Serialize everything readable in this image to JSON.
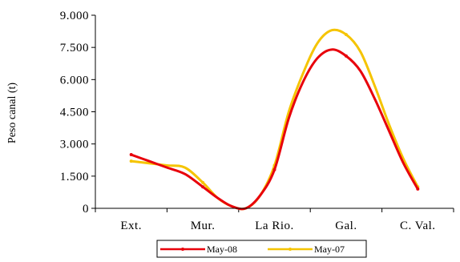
{
  "chart_data": {
    "type": "line",
    "title": "",
    "xlabel": "",
    "ylabel": "Peso canal (t)",
    "categories": [
      "Ext.",
      "Mur.",
      "La Rio.",
      "Gal.",
      "C. Val."
    ],
    "y_ticks": [
      "0",
      "1.500",
      "3.000",
      "4.500",
      "6.000",
      "7.500",
      "9.000"
    ],
    "y_tick_values": [
      0,
      1500,
      3000,
      4500,
      6000,
      7500,
      9000
    ],
    "ylim": [
      0,
      9000
    ],
    "grid": false,
    "legend_position": "bottom",
    "series": [
      {
        "name": "May-08",
        "color": "#e8000b",
        "x": [
          0.0,
          0.25,
          0.5,
          0.75,
          1.0,
          1.2,
          1.4,
          1.6,
          1.8,
          2.0,
          2.2,
          2.4,
          2.6,
          2.8,
          3.0,
          3.2,
          3.4,
          3.6,
          3.8,
          4.0
        ],
        "values": [
          2500,
          2200,
          1900,
          1600,
          1000,
          500,
          100,
          0,
          600,
          1800,
          4200,
          5900,
          7000,
          7400,
          7100,
          6400,
          5100,
          3600,
          2100,
          900
        ]
      },
      {
        "name": "May-07",
        "color": "#f5c400",
        "x": [
          0.0,
          0.25,
          0.5,
          0.75,
          1.0,
          1.2,
          1.4,
          1.6,
          1.8,
          2.0,
          2.2,
          2.4,
          2.6,
          2.8,
          3.0,
          3.2,
          3.4,
          3.6,
          3.8,
          4.0
        ],
        "values": [
          2200,
          2100,
          2000,
          1900,
          1200,
          500,
          100,
          0,
          600,
          2000,
          4500,
          6300,
          7700,
          8300,
          8100,
          7300,
          5700,
          3900,
          2300,
          1000
        ]
      }
    ]
  }
}
